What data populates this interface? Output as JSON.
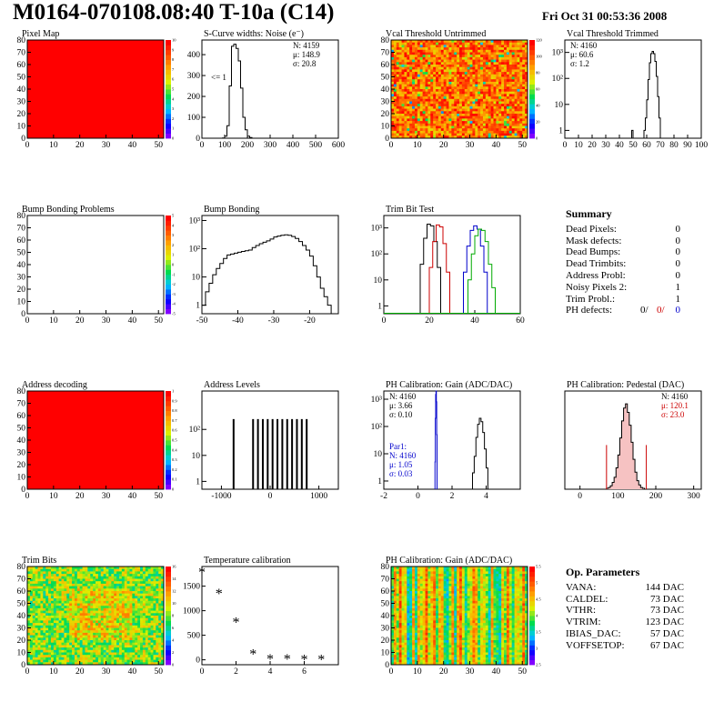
{
  "header": {
    "title": "M0164-070108.08:40 T-10a (C14)",
    "date": "Fri Oct 31 00:53:36 2008"
  },
  "chart_data": [
    {
      "id": "pixmap",
      "type": "heatmap",
      "title": "Pixel Map",
      "fill": "red",
      "xlim": [
        0,
        52
      ],
      "ylim": [
        0,
        80
      ],
      "xticks": [
        0,
        10,
        20,
        30,
        40,
        50
      ],
      "yticks": [
        0,
        10,
        20,
        30,
        40,
        50,
        60,
        70,
        80
      ],
      "zticks": [
        "0",
        "1",
        "2",
        "3",
        "4",
        "5",
        "6",
        "7",
        "8",
        "9",
        "10"
      ]
    },
    {
      "id": "scurve",
      "type": "bar",
      "title": "S-Curve widths: Noise (e⁻)",
      "xlim": [
        0,
        600
      ],
      "ylim": [
        0,
        470
      ],
      "xticks": [
        0,
        100,
        200,
        300,
        400,
        500,
        600
      ],
      "yticks": [
        0,
        100,
        200,
        300,
        400
      ],
      "histogram": {
        "x0": 90,
        "dx": 10,
        "values": [
          1,
          10,
          60,
          250,
          440,
          450,
          430,
          370,
          240,
          100,
          40,
          10,
          3
        ]
      },
      "stats": [
        "N: 4159",
        "μ: 148.9",
        "σ: 20.8"
      ],
      "note": "<= 1"
    },
    {
      "id": "vcalun",
      "type": "heatmap",
      "title": "Vcal Threshold Untrimmed",
      "fill": "noise-hot",
      "xlim": [
        0,
        52
      ],
      "ylim": [
        0,
        80
      ],
      "xticks": [
        0,
        10,
        20,
        30,
        40,
        50
      ],
      "yticks": [
        0,
        10,
        20,
        30,
        40,
        50,
        60,
        70,
        80
      ],
      "zticks": [
        "0",
        "20",
        "40",
        "60",
        "80",
        "100",
        "120"
      ]
    },
    {
      "id": "vcaltr",
      "type": "bar",
      "title": "Vcal Threshold Trimmed",
      "log": true,
      "xlim": [
        0,
        100
      ],
      "ylim": [
        0.5,
        3000
      ],
      "xticks": [
        0,
        10,
        20,
        30,
        40,
        50,
        60,
        70,
        80,
        90,
        100
      ],
      "yticklabels": [
        {
          "v": 1,
          "t": "1"
        },
        {
          "v": 10,
          "t": "10"
        },
        {
          "v": 100,
          "t": "10²"
        },
        {
          "v": 1000,
          "t": "10³"
        }
      ],
      "histogram": {
        "x0": 49,
        "dx": 1,
        "values": [
          1,
          0,
          0,
          0,
          0,
          0,
          0,
          0,
          0,
          1,
          3,
          15,
          90,
          400,
          900,
          1100,
          900,
          450,
          120,
          20,
          3
        ]
      },
      "stats": [
        "N: 4160",
        "μ: 60.6",
        "σ:  1.2"
      ]
    },
    {
      "id": "bump",
      "type": "heatmap",
      "title": "Bump Bonding Problems",
      "fill": "none",
      "xlim": [
        0,
        52
      ],
      "ylim": [
        0,
        80
      ],
      "xticks": [
        0,
        10,
        20,
        30,
        40,
        50
      ],
      "yticks": [
        0,
        10,
        20,
        30,
        40,
        50,
        60,
        70,
        80
      ],
      "zticks": [
        "-5",
        "-4",
        "-3",
        "-2",
        "-1",
        "0",
        "1",
        "2",
        "3",
        "4",
        "5"
      ]
    },
    {
      "id": "bumpbond",
      "type": "bar",
      "title": "Bump Bonding",
      "log": true,
      "xlim": [
        -50,
        -12
      ],
      "ylim": [
        0.5,
        1500
      ],
      "xticks": [
        -50,
        -40,
        -30,
        -20
      ],
      "yticklabels": [
        {
          "v": 1,
          "t": "1"
        },
        {
          "v": 10,
          "t": "10"
        },
        {
          "v": 100,
          "t": "10²"
        },
        {
          "v": 1000,
          "t": "10³"
        }
      ],
      "histogram": {
        "x0": -50,
        "dx": 1,
        "values": [
          1,
          3,
          6,
          12,
          20,
          30,
          45,
          60,
          65,
          70,
          75,
          80,
          85,
          90,
          110,
          130,
          150,
          170,
          190,
          220,
          260,
          280,
          300,
          310,
          300,
          270,
          230,
          180,
          130,
          90,
          55,
          25,
          10,
          4,
          2,
          1
        ]
      }
    },
    {
      "id": "trimbit",
      "type": "line",
      "title": "Trim Bit Test",
      "log": true,
      "xlim": [
        0,
        60
      ],
      "ylim": [
        0.5,
        3000
      ],
      "xticks": [
        0,
        20,
        40,
        60
      ],
      "yticklabels": [
        {
          "v": 1,
          "t": "1"
        },
        {
          "v": 10,
          "t": "10"
        },
        {
          "v": 100,
          "t": "10²"
        },
        {
          "v": 1000,
          "t": "10³"
        }
      ],
      "series": [
        {
          "color": "#000000",
          "x0": 16,
          "values": [
            40,
            400,
            1400,
            1200,
            300,
            30
          ]
        },
        {
          "color": "#cc0000",
          "x0": 20,
          "values": [
            30,
            300,
            1300,
            1100,
            250,
            20
          ]
        },
        {
          "color": "#0000cc",
          "x0": 35,
          "values": [
            20,
            200,
            800,
            1200,
            900,
            200,
            20
          ]
        },
        {
          "color": "#00aa00",
          "x0": 37,
          "values": [
            10,
            100,
            500,
            900,
            800,
            300,
            40,
            5
          ]
        }
      ]
    },
    {
      "id": "addrdec",
      "type": "heatmap",
      "title": "Address decoding",
      "fill": "red",
      "xlim": [
        0,
        52
      ],
      "ylim": [
        0,
        80
      ],
      "xticks": [
        0,
        10,
        20,
        30,
        40,
        50
      ],
      "yticks": [
        0,
        10,
        20,
        30,
        40,
        50,
        60,
        70,
        80
      ],
      "zticks": [
        "0",
        "0.1",
        "0.2",
        "0.3",
        "0.4",
        "0.5",
        "0.6",
        "0.7",
        "0.8",
        "0.9",
        "1"
      ]
    },
    {
      "id": "addrlev",
      "type": "bar",
      "title": "Address Levels",
      "log": true,
      "xlim": [
        -1400,
        1400
      ],
      "ylim": [
        0.5,
        3000
      ],
      "xticks": [
        -1000,
        0,
        1000
      ],
      "yticklabels": [
        {
          "v": 1,
          "t": "1"
        },
        {
          "v": 10,
          "t": "10"
        },
        {
          "v": 100,
          "t": "10²"
        }
      ],
      "spikes": [
        -750,
        -350,
        -250,
        -150,
        -50,
        50,
        150,
        250,
        350,
        450,
        550,
        650,
        750
      ],
      "spike_height": 250
    },
    {
      "id": "phgain",
      "type": "bar",
      "title": "PH Calibration: Gain (ADC/DAC)",
      "log": true,
      "xlim": [
        -2,
        6
      ],
      "ylim": [
        0.5,
        2000
      ],
      "xticks": [
        -2,
        0,
        2,
        4
      ],
      "yticklabels": [
        {
          "v": 1,
          "t": "1"
        },
        {
          "v": 10,
          "t": "10"
        },
        {
          "v": 100,
          "t": "10²"
        },
        {
          "v": 1000,
          "t": "10³"
        }
      ],
      "series": [
        {
          "name": "Par1",
          "color": "#0000cc",
          "x0": 1.0,
          "dx": 0.02,
          "values": [
            5,
            200,
            1500,
            2000,
            800,
            50
          ]
        },
        {
          "color": "#000000",
          "x0": 3.2,
          "dx": 0.1,
          "values": [
            2,
            8,
            40,
            120,
            200,
            150,
            60,
            15,
            3
          ]
        }
      ],
      "stats": [
        "N: 4160",
        "μ: 3.66",
        "σ: 0.10"
      ],
      "stats2": [
        "Par1:",
        "N: 4160",
        "μ: 1.05",
        "σ: 0.03"
      ]
    },
    {
      "id": "phped",
      "type": "bar",
      "title": "PH Calibration: Pedestal (DAC)",
      "xlim": [
        -40,
        320
      ],
      "ylim": [
        0,
        115
      ],
      "xticks": [
        0,
        100,
        200,
        300
      ],
      "histogram": {
        "x0": 70,
        "dx": 5,
        "values": [
          1,
          2,
          4,
          8,
          14,
          25,
          40,
          60,
          80,
          95,
          100,
          90,
          75,
          55,
          35,
          20,
          10,
          5,
          2,
          1
        ]
      },
      "stats": [
        "N: 4160",
        "μ: 120.1",
        "σ: 23.0"
      ],
      "cuts": [
        70,
        175
      ]
    },
    {
      "id": "trimbits",
      "type": "heatmap",
      "title": "Trim Bits",
      "fill": "noise-trim",
      "xlim": [
        0,
        52
      ],
      "ylim": [
        0,
        80
      ],
      "xticks": [
        0,
        10,
        20,
        30,
        40,
        50
      ],
      "yticks": [
        0,
        10,
        20,
        30,
        40,
        50,
        60,
        70,
        80
      ],
      "zticks": [
        "0",
        "2",
        "4",
        "6",
        "8",
        "10",
        "12",
        "14",
        "16"
      ]
    },
    {
      "id": "tempcal",
      "type": "scatter",
      "title": "Temperature calibration",
      "xlim": [
        0,
        8
      ],
      "ylim": [
        -100,
        1900
      ],
      "xticks": [
        0,
        2,
        4,
        6
      ],
      "yticks": [
        0,
        500,
        1000,
        1500
      ],
      "x": [
        0,
        1,
        2,
        3,
        4,
        5,
        6,
        7
      ],
      "y": [
        1780,
        1340,
        760,
        110,
        10,
        10,
        0,
        0
      ]
    },
    {
      "id": "phgain2",
      "type": "heatmap",
      "title": "PH Calibration: Gain (ADC/DAC)",
      "fill": "columns",
      "xlim": [
        0,
        52
      ],
      "ylim": [
        0,
        80
      ],
      "xticks": [
        0,
        10,
        20,
        30,
        40,
        50
      ],
      "yticks": [
        0,
        10,
        20,
        30,
        40,
        50,
        60,
        70,
        80
      ],
      "zticks": [
        "2.5",
        "3",
        "3.5",
        "4",
        "4.5",
        "5",
        "5.5"
      ]
    }
  ],
  "summary": {
    "title": "Summary",
    "rows": [
      {
        "label": "Dead Pixels:",
        "value": "0"
      },
      {
        "label": "Mask defects:",
        "value": "0"
      },
      {
        "label": "Dead Bumps:",
        "value": "0"
      },
      {
        "label": "Dead Trimbits:",
        "value": "0"
      },
      {
        "label": "Address Probl:",
        "value": "0"
      },
      {
        "label": "Noisy Pixels 2:",
        "value": "1"
      },
      {
        "label": "Trim Probl.:",
        "value": "1"
      }
    ],
    "ph_defects": {
      "label": "PH defects:",
      "v1": "0/",
      "v2": "0/",
      "v3": "0"
    }
  },
  "params": {
    "title": "Op. Parameters",
    "rows": [
      {
        "label": "VANA:",
        "value": "144 DAC"
      },
      {
        "label": "CALDEL:",
        "value": "73 DAC"
      },
      {
        "label": "VTHR:",
        "value": "73 DAC"
      },
      {
        "label": "VTRIM:",
        "value": "123 DAC"
      },
      {
        "label": "IBIAS_DAC:",
        "value": "57 DAC"
      },
      {
        "label": "VOFFSETOP:",
        "value": "67 DAC"
      }
    ]
  },
  "colors": {
    "accent_red": "#ff0000",
    "blue": "#0000cc",
    "red_text": "#cc0000"
  }
}
